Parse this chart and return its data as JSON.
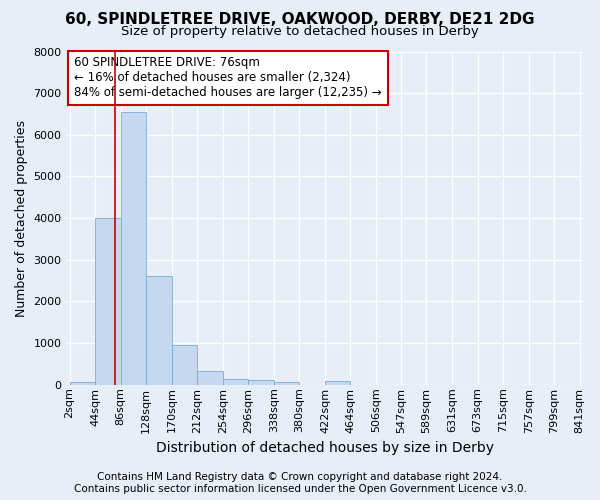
{
  "title": "60, SPINDLETREE DRIVE, OAKWOOD, DERBY, DE21 2DG",
  "subtitle": "Size of property relative to detached houses in Derby",
  "xlabel": "Distribution of detached houses by size in Derby",
  "ylabel": "Number of detached properties",
  "footer_line1": "Contains HM Land Registry data © Crown copyright and database right 2024.",
  "footer_line2": "Contains public sector information licensed under the Open Government Licence v3.0.",
  "annotation_line1": "60 SPINDLETREE DRIVE: 76sqm",
  "annotation_line2": "← 16% of detached houses are smaller (2,324)",
  "annotation_line3": "84% of semi-detached houses are larger (12,235) →",
  "bin_edges": [
    2,
    44,
    86,
    128,
    170,
    212,
    254,
    296,
    338,
    380,
    422,
    464,
    506,
    547,
    589,
    631,
    673,
    715,
    757,
    799,
    841
  ],
  "bin_labels": [
    "2sqm",
    "44sqm",
    "86sqm",
    "128sqm",
    "170sqm",
    "212sqm",
    "254sqm",
    "296sqm",
    "338sqm",
    "380sqm",
    "422sqm",
    "464sqm",
    "506sqm",
    "547sqm",
    "589sqm",
    "631sqm",
    "673sqm",
    "715sqm",
    "757sqm",
    "799sqm",
    "841sqm"
  ],
  "bar_heights": [
    75,
    4000,
    6550,
    2620,
    950,
    320,
    135,
    110,
    75,
    0,
    80,
    0,
    0,
    0,
    0,
    0,
    0,
    0,
    0,
    0
  ],
  "bar_color": "#c5d8f0",
  "bar_edge_color": "#7aadd4",
  "vline_x": 76,
  "vline_color": "#cc0000",
  "background_color": "#e8eef8",
  "grid_color": "#ffffff",
  "ylim": [
    0,
    8000
  ],
  "yticks": [
    0,
    1000,
    2000,
    3000,
    4000,
    5000,
    6000,
    7000,
    8000
  ],
  "annotation_box_facecolor": "#ffffff",
  "annotation_box_edgecolor": "#cc0000",
  "title_fontsize": 11,
  "subtitle_fontsize": 9.5,
  "xlabel_fontsize": 10,
  "ylabel_fontsize": 9,
  "tick_fontsize": 8,
  "annotation_fontsize": 8.5,
  "footer_fontsize": 7.5
}
